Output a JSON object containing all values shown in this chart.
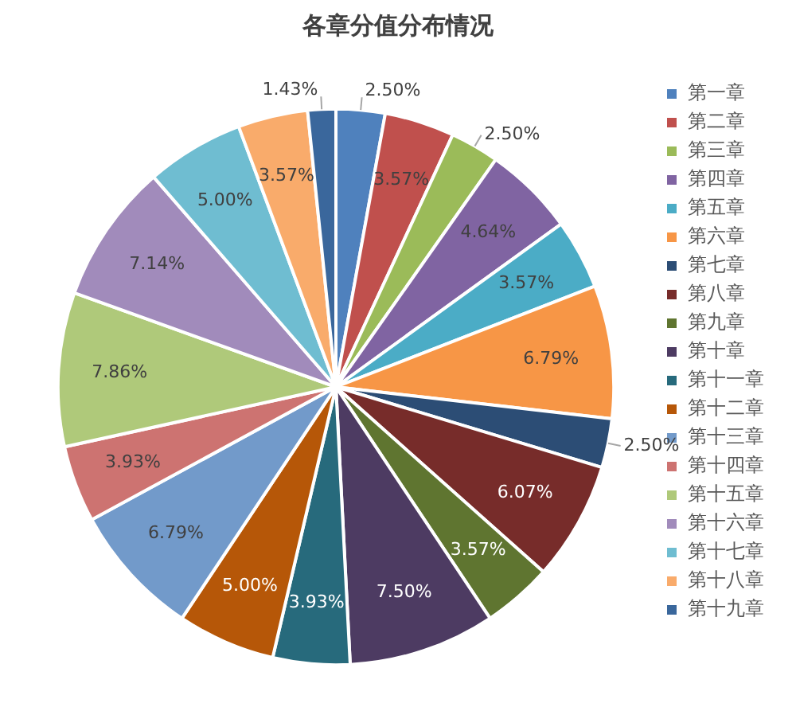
{
  "chart_data": {
    "type": "pie",
    "title": "各章分值分布情况",
    "categories": [
      "第一章",
      "第二章",
      "第三章",
      "第四章",
      "第五章",
      "第六章",
      "第七章",
      "第八章",
      "第九章",
      "第十章",
      "第十一章",
      "第十二章",
      "第十三章",
      "第十四章",
      "第十五章",
      "第十六章",
      "第十七章",
      "第十八章",
      "第十九章"
    ],
    "values": [
      2.5,
      3.57,
      2.5,
      4.64,
      3.57,
      6.79,
      2.5,
      6.07,
      3.57,
      7.5,
      3.93,
      5.0,
      6.79,
      3.93,
      7.86,
      7.14,
      5.0,
      3.57,
      1.43
    ],
    "value_labels": [
      "2.50%",
      "3.57%",
      "2.50%",
      "4.64%",
      "3.57%",
      "6.79%",
      "2.50%",
      "6.07%",
      "3.57%",
      "7.50%",
      "3.93%",
      "5.00%",
      "6.79%",
      "3.93%",
      "7.86%",
      "7.14%",
      "5.00%",
      "3.57%",
      "1.43%"
    ],
    "colors": [
      "#4f81bd",
      "#c0504d",
      "#9bbb59",
      "#8064a2",
      "#4bacc6",
      "#f79646",
      "#2c4d75",
      "#772c2a",
      "#5f7530",
      "#4d3b62",
      "#276a7c",
      "#b65708",
      "#729aca",
      "#cd7371",
      "#afc97a",
      "#a18bbb",
      "#6fbdd1",
      "#f9ab6b",
      "#3a679c"
    ],
    "legend": "right"
  }
}
